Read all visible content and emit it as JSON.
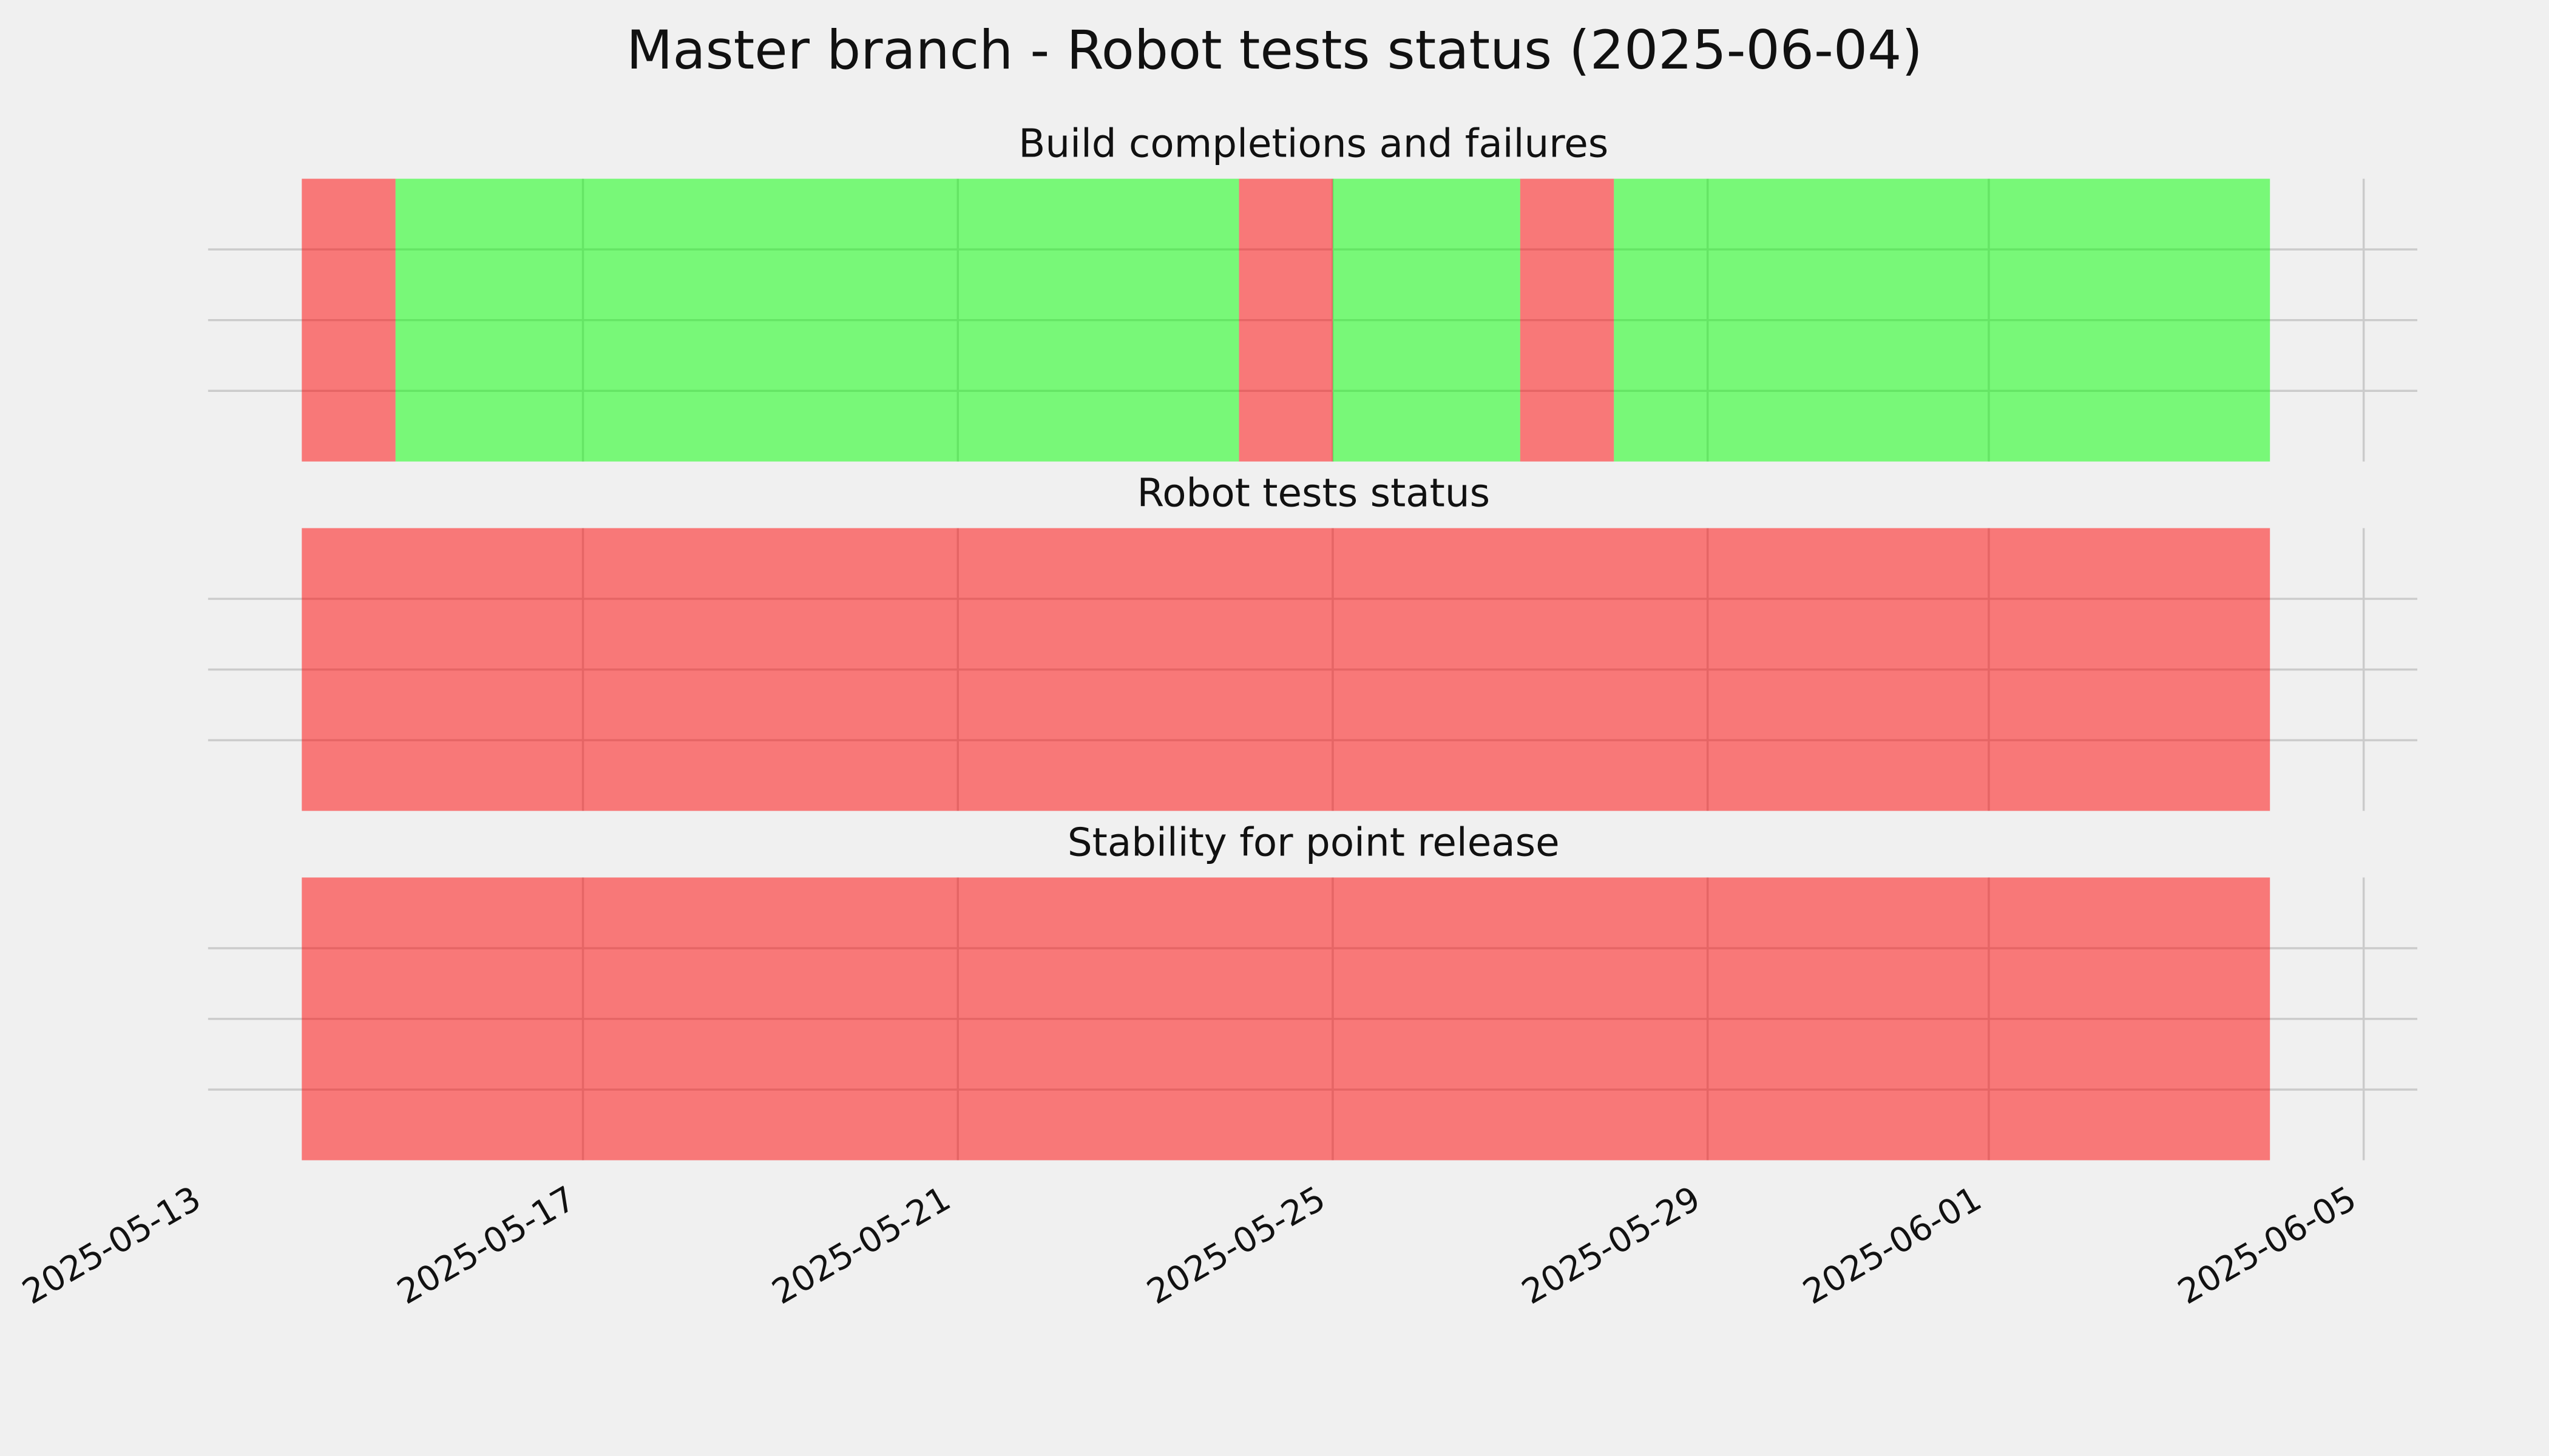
{
  "title": "Master branch - Robot tests status (2025-06-04)",
  "chart_data": [
    {
      "type": "span",
      "title": "Build completions and failures",
      "spans": [
        {
          "start": "2025-05-14",
          "end": "2025-05-15",
          "color": "#ff0000"
        },
        {
          "start": "2025-05-15",
          "end": "2025-05-24",
          "color": "#00ff00"
        },
        {
          "start": "2025-05-24",
          "end": "2025-05-25",
          "color": "#ff0000"
        },
        {
          "start": "2025-05-25",
          "end": "2025-05-27",
          "color": "#00ff00"
        },
        {
          "start": "2025-05-27",
          "end": "2025-05-28",
          "color": "#ff0000"
        },
        {
          "start": "2025-05-28",
          "end": "2025-06-04",
          "color": "#00ff00"
        }
      ],
      "xlim": [
        "2025-05-13",
        "2025-06-05"
      ],
      "xticks": [
        "2025-05-13",
        "2025-05-17",
        "2025-05-21",
        "2025-05-25",
        "2025-05-29",
        "2025-06-01",
        "2025-06-05"
      ],
      "ylim": [
        0,
        1
      ],
      "yticks": [
        0.25,
        0.5,
        0.75
      ],
      "grid": true
    },
    {
      "type": "span",
      "title": "Robot tests status",
      "spans": [
        {
          "start": "2025-05-14",
          "end": "2025-06-04",
          "color": "#ff0000"
        }
      ],
      "xlim": [
        "2025-05-13",
        "2025-06-05"
      ],
      "xticks": [
        "2025-05-13",
        "2025-05-17",
        "2025-05-21",
        "2025-05-25",
        "2025-05-29",
        "2025-06-01",
        "2025-06-05"
      ],
      "ylim": [
        0,
        1
      ],
      "yticks": [
        0.25,
        0.5,
        0.75
      ],
      "grid": true
    },
    {
      "type": "span",
      "title": "Stability for point release",
      "spans": [
        {
          "start": "2025-05-14",
          "end": "2025-06-04",
          "color": "#ff0000"
        }
      ],
      "xlim": [
        "2025-05-13",
        "2025-06-05"
      ],
      "xticks": [
        "2025-05-13",
        "2025-05-17",
        "2025-05-21",
        "2025-05-25",
        "2025-05-29",
        "2025-06-01",
        "2025-06-05"
      ],
      "ylim": [
        0,
        1
      ],
      "yticks": [
        0.25,
        0.5,
        0.75
      ],
      "grid": true,
      "xtick_labels": true
    }
  ]
}
